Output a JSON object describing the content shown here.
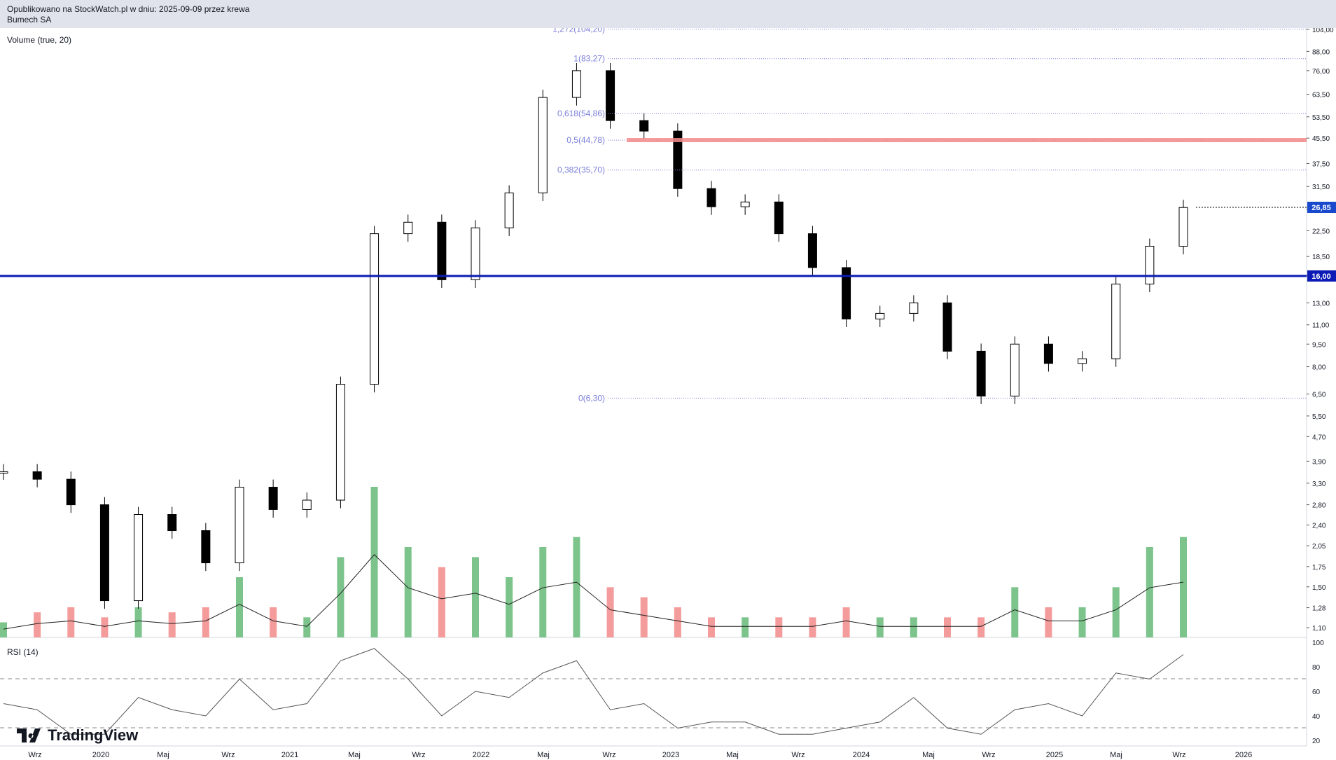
{
  "header": {
    "line1": "Opublikowano na StockWatch.pl w dniu: 2025-09-09 przez krewa",
    "line2": "Bumech SA"
  },
  "panes": {
    "volume_label": "Volume (true, 20)",
    "rsi_label": "RSI (14)"
  },
  "watermark": {
    "text": "TradingView"
  },
  "price_axis": {
    "ticks": [
      "104,00",
      "88,00",
      "76,00",
      "63,50",
      "53,50",
      "45,50",
      "37,50",
      "31,50",
      "26,50",
      "22,50",
      "18,50",
      "16,00",
      "13,00",
      "11,00",
      "9,50",
      "8,00",
      "6,50",
      "5,50",
      "4,70",
      "3,90",
      "3,30",
      "2,80",
      "2,40",
      "2,05",
      "1,75",
      "1,50",
      "1,28",
      "1,10"
    ],
    "current_price": "26,85",
    "support_price": "16,00"
  },
  "rsi_axis": {
    "ticks": [
      "100",
      "80",
      "60",
      "40",
      "20"
    ]
  },
  "time_axis": {
    "labels": [
      "Wrz",
      "2020",
      "Maj",
      "Wrz",
      "2021",
      "Maj",
      "Wrz",
      "2022",
      "Maj",
      "Wrz",
      "2023",
      "Maj",
      "Wrz",
      "2024",
      "Maj",
      "Wrz",
      "2025",
      "Maj",
      "Wrz",
      "2026"
    ]
  },
  "fibonacci": {
    "levels": [
      {
        "label": "1,272(104,20)",
        "price": 104.2
      },
      {
        "label": "1(83,27)",
        "price": 83.27
      },
      {
        "label": "0,618(54,86)",
        "price": 54.86
      },
      {
        "label": "0,5(44,78)",
        "price": 44.78
      },
      {
        "label": "0,382(35,70)",
        "price": 35.7
      },
      {
        "label": "0(6,30)",
        "price": 6.3
      }
    ]
  },
  "colors": {
    "fib": "#7b7fd8",
    "support_line": "#0c1bb5",
    "resistance_zone": "#f28b8b",
    "volume_up": "#7cc48c",
    "volume_down": "#f49b9b",
    "candle": "#000000"
  },
  "chart_data": {
    "type": "candlestick",
    "scale": "log",
    "ylim": [
      1.05,
      110
    ],
    "x": [
      "2019-06",
      "2019-09",
      "2020-01",
      "2020-04",
      "2020-06",
      "2020-09",
      "2020-12",
      "2021-01",
      "2021-04",
      "2021-06",
      "2021-09",
      "2021-10",
      "2021-12",
      "2022-03",
      "2022-04",
      "2022-06",
      "2022-08",
      "2022-09",
      "2022-10",
      "2022-12",
      "2023-03",
      "2023-06",
      "2023-09",
      "2023-11",
      "2024-01",
      "2024-03",
      "2024-06",
      "2024-09",
      "2024-10",
      "2024-12",
      "2025-01",
      "2025-03",
      "2025-05",
      "2025-07",
      "2025-08",
      "2025-09"
    ],
    "series": [
      {
        "values": [
          3.6,
          3.4,
          2.8,
          1.35,
          2.6,
          2.3,
          1.8,
          3.2,
          2.7,
          2.9,
          7.0,
          22.0,
          24.0,
          15.5,
          23.0,
          30.0,
          62.0,
          76.0,
          52.0,
          48.0,
          31.0,
          27.0,
          28.0,
          22.0,
          17.0,
          11.5,
          12.0,
          13.0,
          9.0,
          6.4,
          9.5,
          8.2,
          8.5,
          15.0,
          20.0,
          26.85
        ]
      },
      {
        "values": [
          0.15,
          0.25,
          0.3,
          0.2,
          0.3,
          0.25,
          0.3,
          0.6,
          0.3,
          0.2,
          0.8,
          1.5,
          0.9,
          0.7,
          0.8,
          0.6,
          0.9,
          1.0,
          0.5,
          0.4,
          0.3,
          0.2,
          0.2,
          0.2,
          0.2,
          0.3,
          0.2,
          0.2,
          0.2,
          0.2,
          0.5,
          0.3,
          0.3,
          0.5,
          0.9,
          1.0
        ]
      },
      {
        "values": [
          50,
          45,
          25,
          25,
          55,
          45,
          40,
          70,
          45,
          50,
          85,
          95,
          70,
          40,
          60,
          55,
          75,
          85,
          45,
          50,
          30,
          35,
          35,
          25,
          25,
          30,
          35,
          55,
          30,
          25,
          45,
          50,
          40,
          75,
          70,
          90
        ]
      }
    ]
  }
}
